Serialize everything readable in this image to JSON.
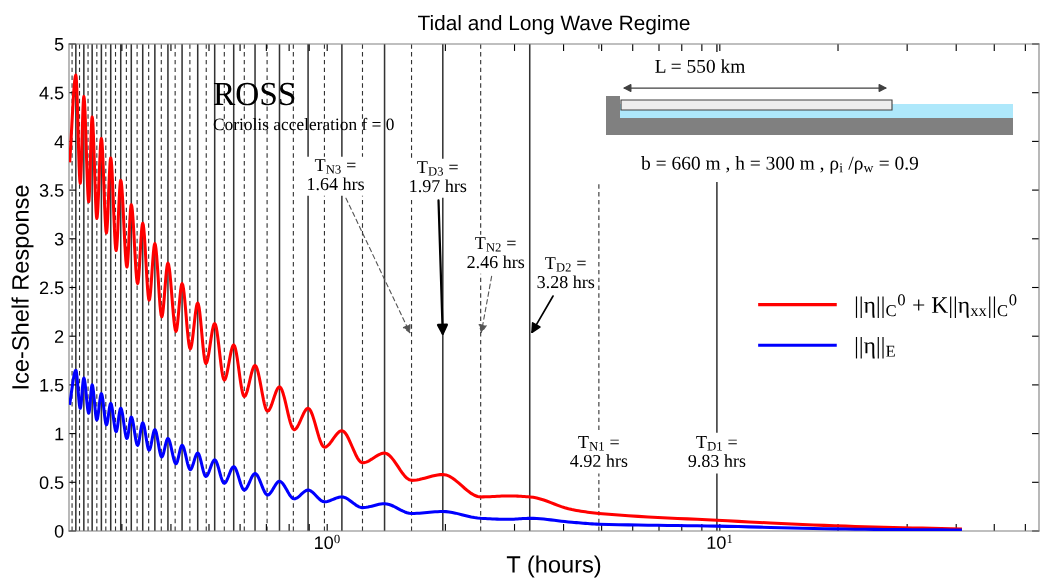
{
  "chart_data": {
    "type": "line",
    "title": "Tidal and Long Wave Regime",
    "xlabel": "T (hours)",
    "ylabel": "Ice-Shelf Response",
    "log": "x",
    "xlim": [
      0.22,
      65
    ],
    "ylim": [
      0,
      5
    ],
    "xticks": [
      {
        "value": 0.3,
        "label": null
      },
      {
        "value": 0.4,
        "label": null
      },
      {
        "value": 0.5,
        "label": null
      },
      {
        "value": 0.6,
        "label": null
      },
      {
        "value": 0.7,
        "label": null
      },
      {
        "value": 0.8,
        "label": null
      },
      {
        "value": 0.9,
        "label": null
      },
      {
        "value": 1,
        "label": "10$^{0}$"
      },
      {
        "value": 2,
        "label": null
      },
      {
        "value": 3,
        "label": null
      },
      {
        "value": 4,
        "label": null
      },
      {
        "value": 5,
        "label": null
      },
      {
        "value": 6,
        "label": null
      },
      {
        "value": 7,
        "label": null
      },
      {
        "value": 8,
        "label": null
      },
      {
        "value": 9,
        "label": null
      },
      {
        "value": 10,
        "label": "10$^{1}$"
      },
      {
        "value": 20,
        "label": null
      },
      {
        "value": 30,
        "label": null
      },
      {
        "value": 40,
        "label": null
      },
      {
        "value": 50,
        "label": null
      },
      {
        "value": 60,
        "label": null
      }
    ],
    "yticks": [
      0,
      0.5,
      1,
      1.5,
      2,
      2.5,
      3,
      3.5,
      4,
      4.5,
      5
    ],
    "grid": false,
    "legend": "right",
    "line_style": "solid",
    "marker": "none",
    "x": [
      0.221,
      0.229,
      0.235,
      0.24,
      0.247,
      0.252,
      0.259,
      0.266,
      0.274,
      0.281,
      0.29,
      0.298,
      0.309,
      0.317,
      0.329,
      0.339,
      0.352,
      0.364,
      0.379,
      0.393,
      0.412,
      0.427,
      0.448,
      0.468,
      0.491,
      0.517,
      0.547,
      0.578,
      0.615,
      0.655,
      0.705,
      0.756,
      0.824,
      0.894,
      0.984,
      1.09,
      1.23,
      1.4,
      1.64,
      1.97,
      2.46,
      2.9,
      3.28,
      4.2,
      4.92,
      9.83,
      20.9,
      41
    ],
    "series": [
      {
        "name": "||η||$_{C}$$^{0}$ + K||η$_{xx}$||$_{C}$$^{0}$",
        "color": "#ff0000",
        "values": [
          3.8,
          4.68,
          3.57,
          4.46,
          3.38,
          4.25,
          3.21,
          4.03,
          3.06,
          3.83,
          2.88,
          3.6,
          2.71,
          3.35,
          2.54,
          3.16,
          2.37,
          2.95,
          2.2,
          2.75,
          2.05,
          2.54,
          1.87,
          2.34,
          1.72,
          2.13,
          1.55,
          1.91,
          1.38,
          1.7,
          1.23,
          1.48,
          1.04,
          1.26,
          0.86,
          1.03,
          0.7,
          0.8,
          0.52,
          0.58,
          0.35,
          0.36,
          0.35,
          0.22,
          0.18,
          0.11,
          0.05,
          0.02
        ]
      },
      {
        "name": "||η||$_{E}$",
        "color": "#0000ff",
        "values": [
          1.31,
          1.65,
          1.26,
          1.57,
          1.21,
          1.5,
          1.14,
          1.41,
          1.09,
          1.31,
          1.02,
          1.26,
          0.95,
          1.17,
          0.88,
          1.11,
          0.83,
          1.04,
          0.76,
          0.95,
          0.69,
          0.88,
          0.63,
          0.8,
          0.56,
          0.73,
          0.49,
          0.66,
          0.42,
          0.59,
          0.37,
          0.51,
          0.33,
          0.42,
          0.3,
          0.35,
          0.24,
          0.28,
          0.18,
          0.2,
          0.13,
          0.12,
          0.13,
          0.09,
          0.07,
          0.05,
          0.02,
          0.01
        ]
      }
    ],
    "ref_lines": [
      {
        "axis": "x",
        "value": 9.83,
        "color": "#333333",
        "line_style": "solid"
      },
      {
        "axis": "x",
        "value": 3.28,
        "color": "#333333",
        "line_style": "solid"
      },
      {
        "axis": "x",
        "value": 1.97,
        "color": "#333333",
        "line_style": "solid"
      },
      {
        "axis": "x",
        "value": 1.4,
        "color": "#333333",
        "line_style": "solid"
      },
      {
        "axis": "x",
        "value": 1.09,
        "color": "#333333",
        "line_style": "solid"
      },
      {
        "axis": "x",
        "value": 0.894,
        "color": "#333333",
        "line_style": "solid"
      },
      {
        "axis": "x",
        "value": 0.756,
        "color": "#333333",
        "line_style": "solid"
      },
      {
        "axis": "x",
        "value": 0.655,
        "color": "#333333",
        "line_style": "solid"
      },
      {
        "axis": "x",
        "value": 0.578,
        "color": "#333333",
        "line_style": "solid"
      },
      {
        "axis": "x",
        "value": 0.517,
        "color": "#333333",
        "line_style": "solid"
      },
      {
        "axis": "x",
        "value": 0.468,
        "color": "#333333",
        "line_style": "solid"
      },
      {
        "axis": "x",
        "value": 0.427,
        "color": "#333333",
        "line_style": "solid"
      },
      {
        "axis": "x",
        "value": 0.393,
        "color": "#333333",
        "line_style": "solid"
      },
      {
        "axis": "x",
        "value": 0.364,
        "color": "#333333",
        "line_style": "solid"
      },
      {
        "axis": "x",
        "value": 0.339,
        "color": "#333333",
        "line_style": "solid"
      },
      {
        "axis": "x",
        "value": 0.317,
        "color": "#333333",
        "line_style": "solid"
      },
      {
        "axis": "x",
        "value": 0.298,
        "color": "#333333",
        "line_style": "solid"
      },
      {
        "axis": "x",
        "value": 0.281,
        "color": "#333333",
        "line_style": "solid"
      },
      {
        "axis": "x",
        "value": 0.266,
        "color": "#333333",
        "line_style": "solid"
      },
      {
        "axis": "x",
        "value": 0.252,
        "color": "#333333",
        "line_style": "solid"
      },
      {
        "axis": "x",
        "value": 0.24,
        "color": "#333333",
        "line_style": "solid"
      },
      {
        "axis": "x",
        "value": 0.229,
        "color": "#333333",
        "line_style": "solid"
      },
      {
        "axis": "x",
        "value": 4.92,
        "color": "#333333",
        "line_style": "dashed"
      },
      {
        "axis": "x",
        "value": 2.46,
        "color": "#333333",
        "line_style": "dashed"
      },
      {
        "axis": "x",
        "value": 1.64,
        "color": "#333333",
        "line_style": "dashed"
      },
      {
        "axis": "x",
        "value": 1.23,
        "color": "#333333",
        "line_style": "dashed"
      },
      {
        "axis": "x",
        "value": 0.984,
        "color": "#333333",
        "line_style": "dashed"
      },
      {
        "axis": "x",
        "value": 0.82,
        "color": "#333333",
        "line_style": "dashed"
      },
      {
        "axis": "x",
        "value": 0.703,
        "color": "#333333",
        "line_style": "dashed"
      },
      {
        "axis": "x",
        "value": 0.615,
        "color": "#333333",
        "line_style": "dashed"
      },
      {
        "axis": "x",
        "value": 0.547,
        "color": "#333333",
        "line_style": "dashed"
      },
      {
        "axis": "x",
        "value": 0.492,
        "color": "#333333",
        "line_style": "dashed"
      },
      {
        "axis": "x",
        "value": 0.447,
        "color": "#333333",
        "line_style": "dashed"
      },
      {
        "axis": "x",
        "value": 0.41,
        "color": "#333333",
        "line_style": "dashed"
      },
      {
        "axis": "x",
        "value": 0.378,
        "color": "#333333",
        "line_style": "dashed"
      },
      {
        "axis": "x",
        "value": 0.351,
        "color": "#333333",
        "line_style": "dashed"
      },
      {
        "axis": "x",
        "value": 0.328,
        "color": "#333333",
        "line_style": "dashed"
      },
      {
        "axis": "x",
        "value": 0.308,
        "color": "#333333",
        "line_style": "dashed"
      },
      {
        "axis": "x",
        "value": 0.289,
        "color": "#333333",
        "line_style": "dashed"
      },
      {
        "axis": "x",
        "value": 0.273,
        "color": "#333333",
        "line_style": "dashed"
      },
      {
        "axis": "x",
        "value": 0.259,
        "color": "#333333",
        "line_style": "dashed"
      },
      {
        "axis": "x",
        "value": 0.246,
        "color": "#333333",
        "line_style": "dashed"
      },
      {
        "axis": "x",
        "value": 0.234,
        "color": "#333333",
        "line_style": "dashed"
      },
      {
        "axis": "x",
        "value": 0.224,
        "color": "#333333",
        "line_style": "dashed"
      }
    ],
    "annotations": [
      {
        "text": "T$_{N3}$ =\n1.64 hrs",
        "x": 1.64,
        "y": 2
      },
      {
        "text": "T$_{D3}$ =\n1.97 hrs",
        "x": 1.97,
        "y": 2
      },
      {
        "text": "T$_{N2}$ =\n2.46 hrs",
        "x": 2.46,
        "y": 2
      },
      {
        "text": "T$_{D2}$ =\n3.28 hrs",
        "x": 3.28,
        "y": 2
      },
      {
        "text": "T$_{N1}$ =\n4.92 hrs",
        "x": 4.92,
        "y": 0.8
      },
      {
        "text": "T$_{D1}$ =\n9.83 hrs",
        "x": 9.83,
        "y": 0.8
      },
      "ROSS",
      "Coriolis acceleration f = 0",
      "L = 550 km",
      "b = 660 m , h = 300 m , ρ$_{i}$ /ρ$_{w}$ = 0.9"
    ]
  }
}
